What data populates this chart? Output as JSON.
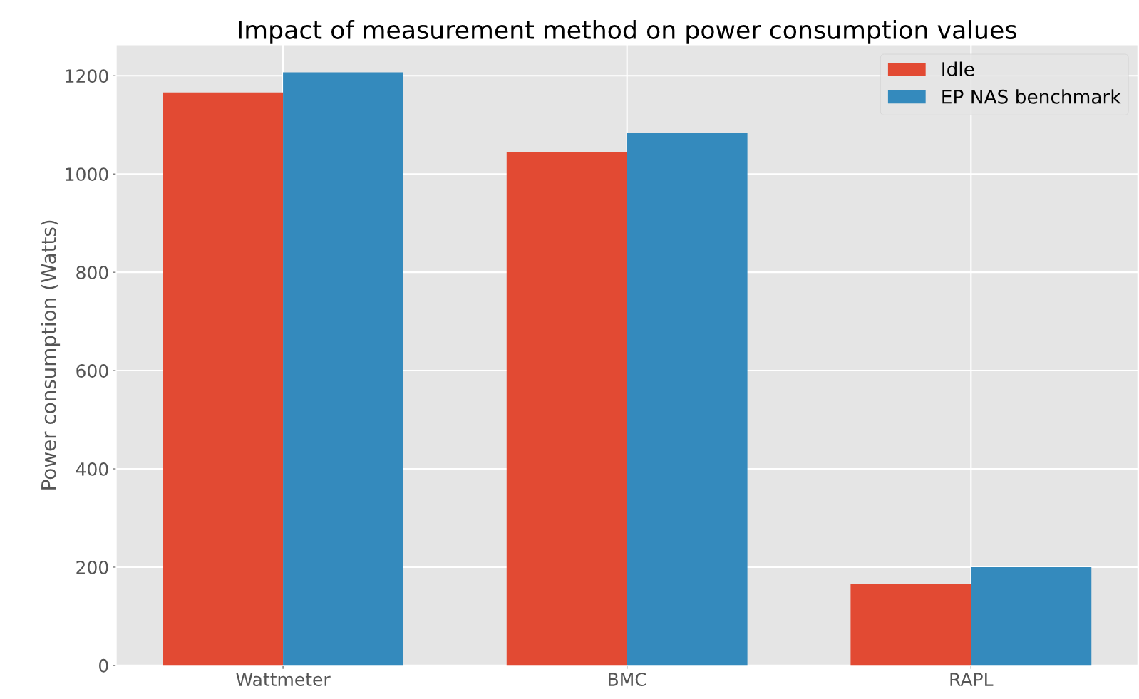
{
  "chart_data": {
    "type": "bar",
    "title": "Impact of measurement method on power consumption values",
    "ylabel": "Power consumption (Watts)",
    "categories": [
      "Wattmeter",
      "BMC",
      "RAPL"
    ],
    "series": [
      {
        "name": "Idle",
        "color": "#e24a33",
        "values": [
          1166,
          1045,
          165
        ]
      },
      {
        "name": "EP NAS benchmark",
        "color": "#348abd",
        "values": [
          1207,
          1083,
          200
        ]
      }
    ],
    "ylim": [
      0,
      1263
    ],
    "yticks": [
      0,
      200,
      400,
      600,
      800,
      1000,
      1200
    ],
    "grid": true,
    "legend": "top right"
  }
}
